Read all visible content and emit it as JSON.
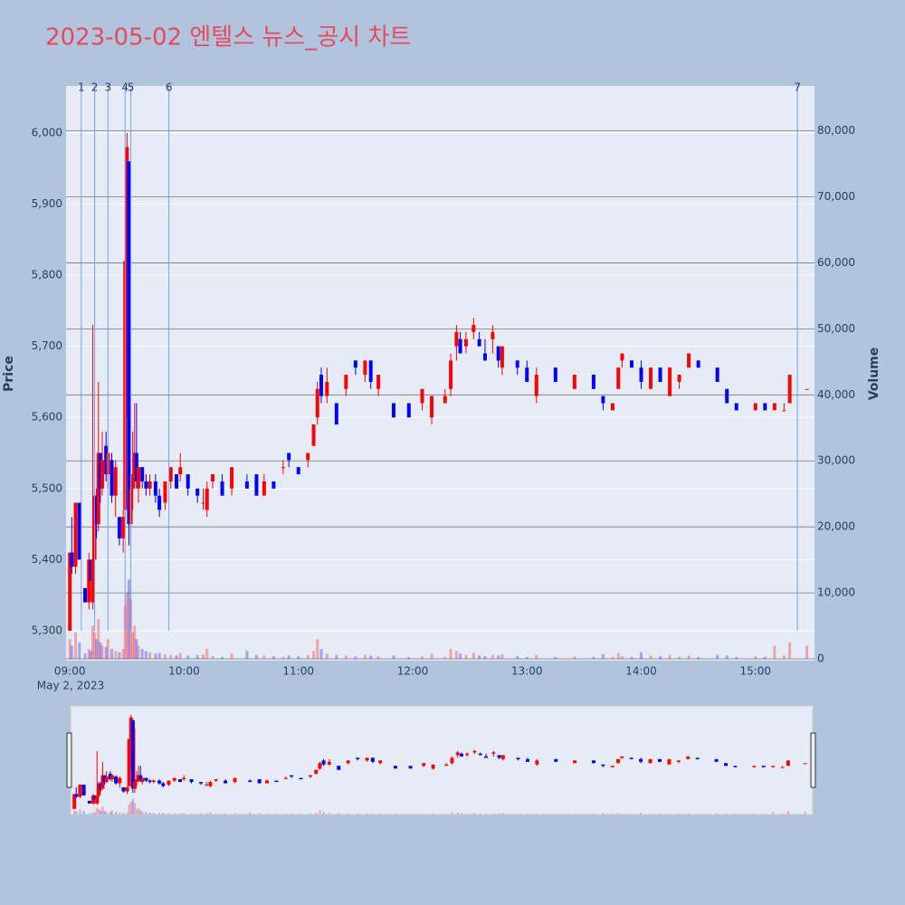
{
  "chart_data": {
    "type": "candlestick",
    "title": "2023-05-02 엔텔스 뉴스_공시 차트",
    "ylabel": "Price",
    "y2label": "Volume",
    "date_label": "May 2, 2023",
    "increasing_color": "#ff0000",
    "decreasing_color": "#0000ff",
    "event_color": "#7f9cf0",
    "xlim": [
      "08:58",
      "15:31"
    ],
    "xticks": [
      "09:00",
      "10:00",
      "11:00",
      "12:00",
      "13:00",
      "14:00",
      "15:00"
    ],
    "ylim": [
      5258,
      6066
    ],
    "yticks": [
      {
        "value": 5300,
        "label": "5,300"
      },
      {
        "value": 5400,
        "label": "5,400"
      },
      {
        "value": 5500,
        "label": "5,500"
      },
      {
        "value": 5600,
        "label": "5,600"
      },
      {
        "value": 5700,
        "label": "5,700"
      },
      {
        "value": 5800,
        "label": "5,800"
      },
      {
        "value": 5900,
        "label": "5,900"
      },
      {
        "value": 6000,
        "label": "6,000"
      }
    ],
    "y2lim": [
      -270,
      86800
    ],
    "y2ticks": [
      0,
      {
        "value": 10000,
        "label": "10,000"
      },
      {
        "value": 20000,
        "label": "20,000"
      },
      {
        "value": 30000,
        "label": "30,000"
      },
      {
        "value": 40000,
        "label": "40,000"
      },
      {
        "value": 50000,
        "label": "50,000"
      },
      {
        "value": 60000,
        "label": "60,000"
      },
      {
        "value": 70000,
        "label": "70,000"
      },
      {
        "value": 80000,
        "label": "80,000"
      }
    ],
    "events": [
      {
        "label": "1",
        "x": "09:06"
      },
      {
        "label": "2",
        "x": "09:13"
      },
      {
        "label": "3",
        "x": "09:20"
      },
      {
        "label": "4",
        "x": "09:29"
      },
      {
        "label": "5",
        "x": "09:32"
      },
      {
        "label": "6",
        "x": "09:52"
      },
      {
        "label": "7",
        "x": "15:22"
      }
    ],
    "x": [
      "09:00",
      "09:01",
      "09:03",
      "09:05",
      "09:08",
      "09:10",
      "09:11",
      "09:12",
      "09:13",
      "09:14",
      "09:15",
      "09:16",
      "09:17",
      "09:19",
      "09:20",
      "09:22",
      "09:24",
      "09:26",
      "09:28",
      "09:29",
      "09:30",
      "09:31",
      "09:32",
      "09:33",
      "09:34",
      "09:35",
      "09:36",
      "09:38",
      "09:40",
      "09:42",
      "09:45",
      "09:47",
      "09:50",
      "09:53",
      "09:56",
      "09:58",
      "10:02",
      "10:07",
      "10:10",
      "10:12",
      "10:15",
      "10:20",
      "10:25",
      "10:33",
      "10:38",
      "10:42",
      "10:47",
      "10:52",
      "10:55",
      "11:00",
      "11:05",
      "11:08",
      "11:10",
      "11:12",
      "11:15",
      "11:20",
      "11:25",
      "11:30",
      "11:35",
      "11:38",
      "11:42",
      "11:50",
      "11:58",
      "12:05",
      "12:10",
      "12:17",
      "12:20",
      "12:23",
      "12:25",
      "12:28",
      "12:32",
      "12:35",
      "12:38",
      "12:42",
      "12:45",
      "12:47",
      "12:55",
      "13:00",
      "13:05",
      "13:15",
      "13:25",
      "13:35",
      "13:40",
      "13:45",
      "13:48",
      "13:50",
      "13:55",
      "14:00",
      "14:05",
      "14:10",
      "14:15",
      "14:20",
      "14:25",
      "14:30",
      "14:40",
      "14:45",
      "14:50",
      "15:00",
      "15:05",
      "15:10",
      "15:15",
      "15:18",
      "15:27"
    ],
    "open": [
      5300,
      5410,
      5390,
      5480,
      5360,
      5340,
      5400,
      5340,
      5400,
      5490,
      5450,
      5550,
      5500,
      5560,
      5520,
      5540,
      5490,
      5460,
      5430,
      5470,
      5820,
      5960,
      5450,
      5500,
      5520,
      5550,
      5500,
      5530,
      5510,
      5500,
      5510,
      5490,
      5480,
      5510,
      5520,
      5520,
      5520,
      5500,
      5480,
      5470,
      5510,
      5510,
      5500,
      5510,
      5520,
      5490,
      5510,
      5530,
      5550,
      5530,
      5540,
      5560,
      5600,
      5660,
      5630,
      5620,
      5640,
      5680,
      5660,
      5680,
      5640,
      5620,
      5620,
      5620,
      5600,
      5620,
      5640,
      5700,
      5710,
      5700,
      5720,
      5710,
      5690,
      5710,
      5700,
      5670,
      5680,
      5670,
      5630,
      5670,
      5640,
      5660,
      5630,
      5610,
      5640,
      5680,
      5680,
      5670,
      5640,
      5670,
      5630,
      5650,
      5670,
      5680,
      5670,
      5640,
      5620,
      5610,
      5620,
      5610,
      5610,
      5620,
      5640
    ],
    "high": [
      5410,
      5460,
      5480,
      5480,
      5360,
      5410,
      5400,
      5730,
      5500,
      5500,
      5650,
      5550,
      5580,
      5580,
      5560,
      5550,
      5540,
      5460,
      5470,
      5820,
      6000,
      5960,
      5900,
      5580,
      5620,
      5620,
      5530,
      5530,
      5520,
      5520,
      5520,
      5500,
      5510,
      5530,
      5520,
      5550,
      5520,
      5500,
      5500,
      5510,
      5520,
      5520,
      5530,
      5520,
      5520,
      5520,
      5510,
      5540,
      5550,
      5530,
      5550,
      5590,
      5650,
      5670,
      5670,
      5620,
      5660,
      5680,
      5680,
      5680,
      5660,
      5620,
      5620,
      5640,
      5630,
      5640,
      5690,
      5730,
      5720,
      5720,
      5740,
      5720,
      5710,
      5730,
      5700,
      5700,
      5680,
      5680,
      5670,
      5670,
      5660,
      5660,
      5630,
      5620,
      5670,
      5690,
      5680,
      5680,
      5670,
      5670,
      5670,
      5660,
      5690,
      5680,
      5670,
      5640,
      5620,
      5620,
      5620,
      5620,
      5620,
      5660,
      5640
    ],
    "low": [
      5300,
      5380,
      5380,
      5400,
      5340,
      5330,
      5370,
      5330,
      5380,
      5430,
      5440,
      5480,
      5490,
      5510,
      5500,
      5480,
      5460,
      5420,
      5410,
      5460,
      5600,
      5420,
      5420,
      5470,
      5500,
      5500,
      5480,
      5500,
      5490,
      5490,
      5480,
      5460,
      5470,
      5500,
      5500,
      5510,
      5490,
      5480,
      5470,
      5460,
      5500,
      5490,
      5490,
      5500,
      5490,
      5490,
      5500,
      5520,
      5530,
      5520,
      5530,
      5560,
      5590,
      5620,
      5620,
      5590,
      5630,
      5660,
      5650,
      5640,
      5630,
      5600,
      5600,
      5610,
      5590,
      5620,
      5630,
      5680,
      5690,
      5690,
      5710,
      5700,
      5680,
      5690,
      5670,
      5660,
      5660,
      5650,
      5620,
      5650,
      5640,
      5640,
      5610,
      5610,
      5640,
      5670,
      5670,
      5640,
      5640,
      5650,
      5630,
      5640,
      5670,
      5670,
      5650,
      5620,
      5610,
      5610,
      5610,
      5610,
      5610,
      5620,
      5640
    ],
    "close": [
      5410,
      5390,
      5480,
      5400,
      5340,
      5400,
      5370,
      5400,
      5490,
      5450,
      5550,
      5500,
      5540,
      5520,
      5550,
      5490,
      5530,
      5430,
      5460,
      5820,
      5980,
      5450,
      5500,
      5520,
      5550,
      5510,
      5530,
      5510,
      5500,
      5510,
      5490,
      5470,
      5510,
      5530,
      5500,
      5530,
      5500,
      5490,
      5480,
      5500,
      5520,
      5490,
      5530,
      5500,
      5490,
      5510,
      5500,
      5530,
      5540,
      5520,
      5550,
      5590,
      5640,
      5630,
      5650,
      5590,
      5660,
      5670,
      5680,
      5650,
      5660,
      5600,
      5600,
      5640,
      5630,
      5630,
      5680,
      5720,
      5690,
      5710,
      5730,
      5700,
      5680,
      5720,
      5680,
      5700,
      5670,
      5650,
      5660,
      5650,
      5660,
      5640,
      5620,
      5620,
      5670,
      5690,
      5670,
      5650,
      5670,
      5650,
      5670,
      5660,
      5690,
      5670,
      5650,
      5620,
      5610,
      5620,
      5610,
      5620,
      5610,
      5660,
      5640
    ],
    "volume": [
      3000,
      2000,
      4000,
      2500,
      800,
      1500,
      1200,
      5000,
      4000,
      3000,
      6000,
      2500,
      2000,
      1800,
      3000,
      1500,
      1200,
      1000,
      1500,
      8000,
      10000,
      12000,
      9000,
      4000,
      5000,
      3000,
      2000,
      1500,
      1200,
      1000,
      800,
      900,
      700,
      600,
      500,
      900,
      500,
      600,
      700,
      1500,
      400,
      300,
      800,
      1200,
      600,
      500,
      400,
      300,
      500,
      400,
      600,
      1200,
      3000,
      1500,
      800,
      600,
      500,
      400,
      600,
      500,
      400,
      500,
      300,
      400,
      800,
      300,
      1500,
      1200,
      800,
      600,
      900,
      500,
      400,
      600,
      500,
      700,
      400,
      300,
      600,
      300,
      400,
      300,
      700,
      300,
      900,
      400,
      300,
      1000,
      500,
      400,
      600,
      300,
      500,
      300,
      600,
      500,
      300,
      400,
      300,
      2000,
      500,
      2500,
      2000
    ]
  }
}
